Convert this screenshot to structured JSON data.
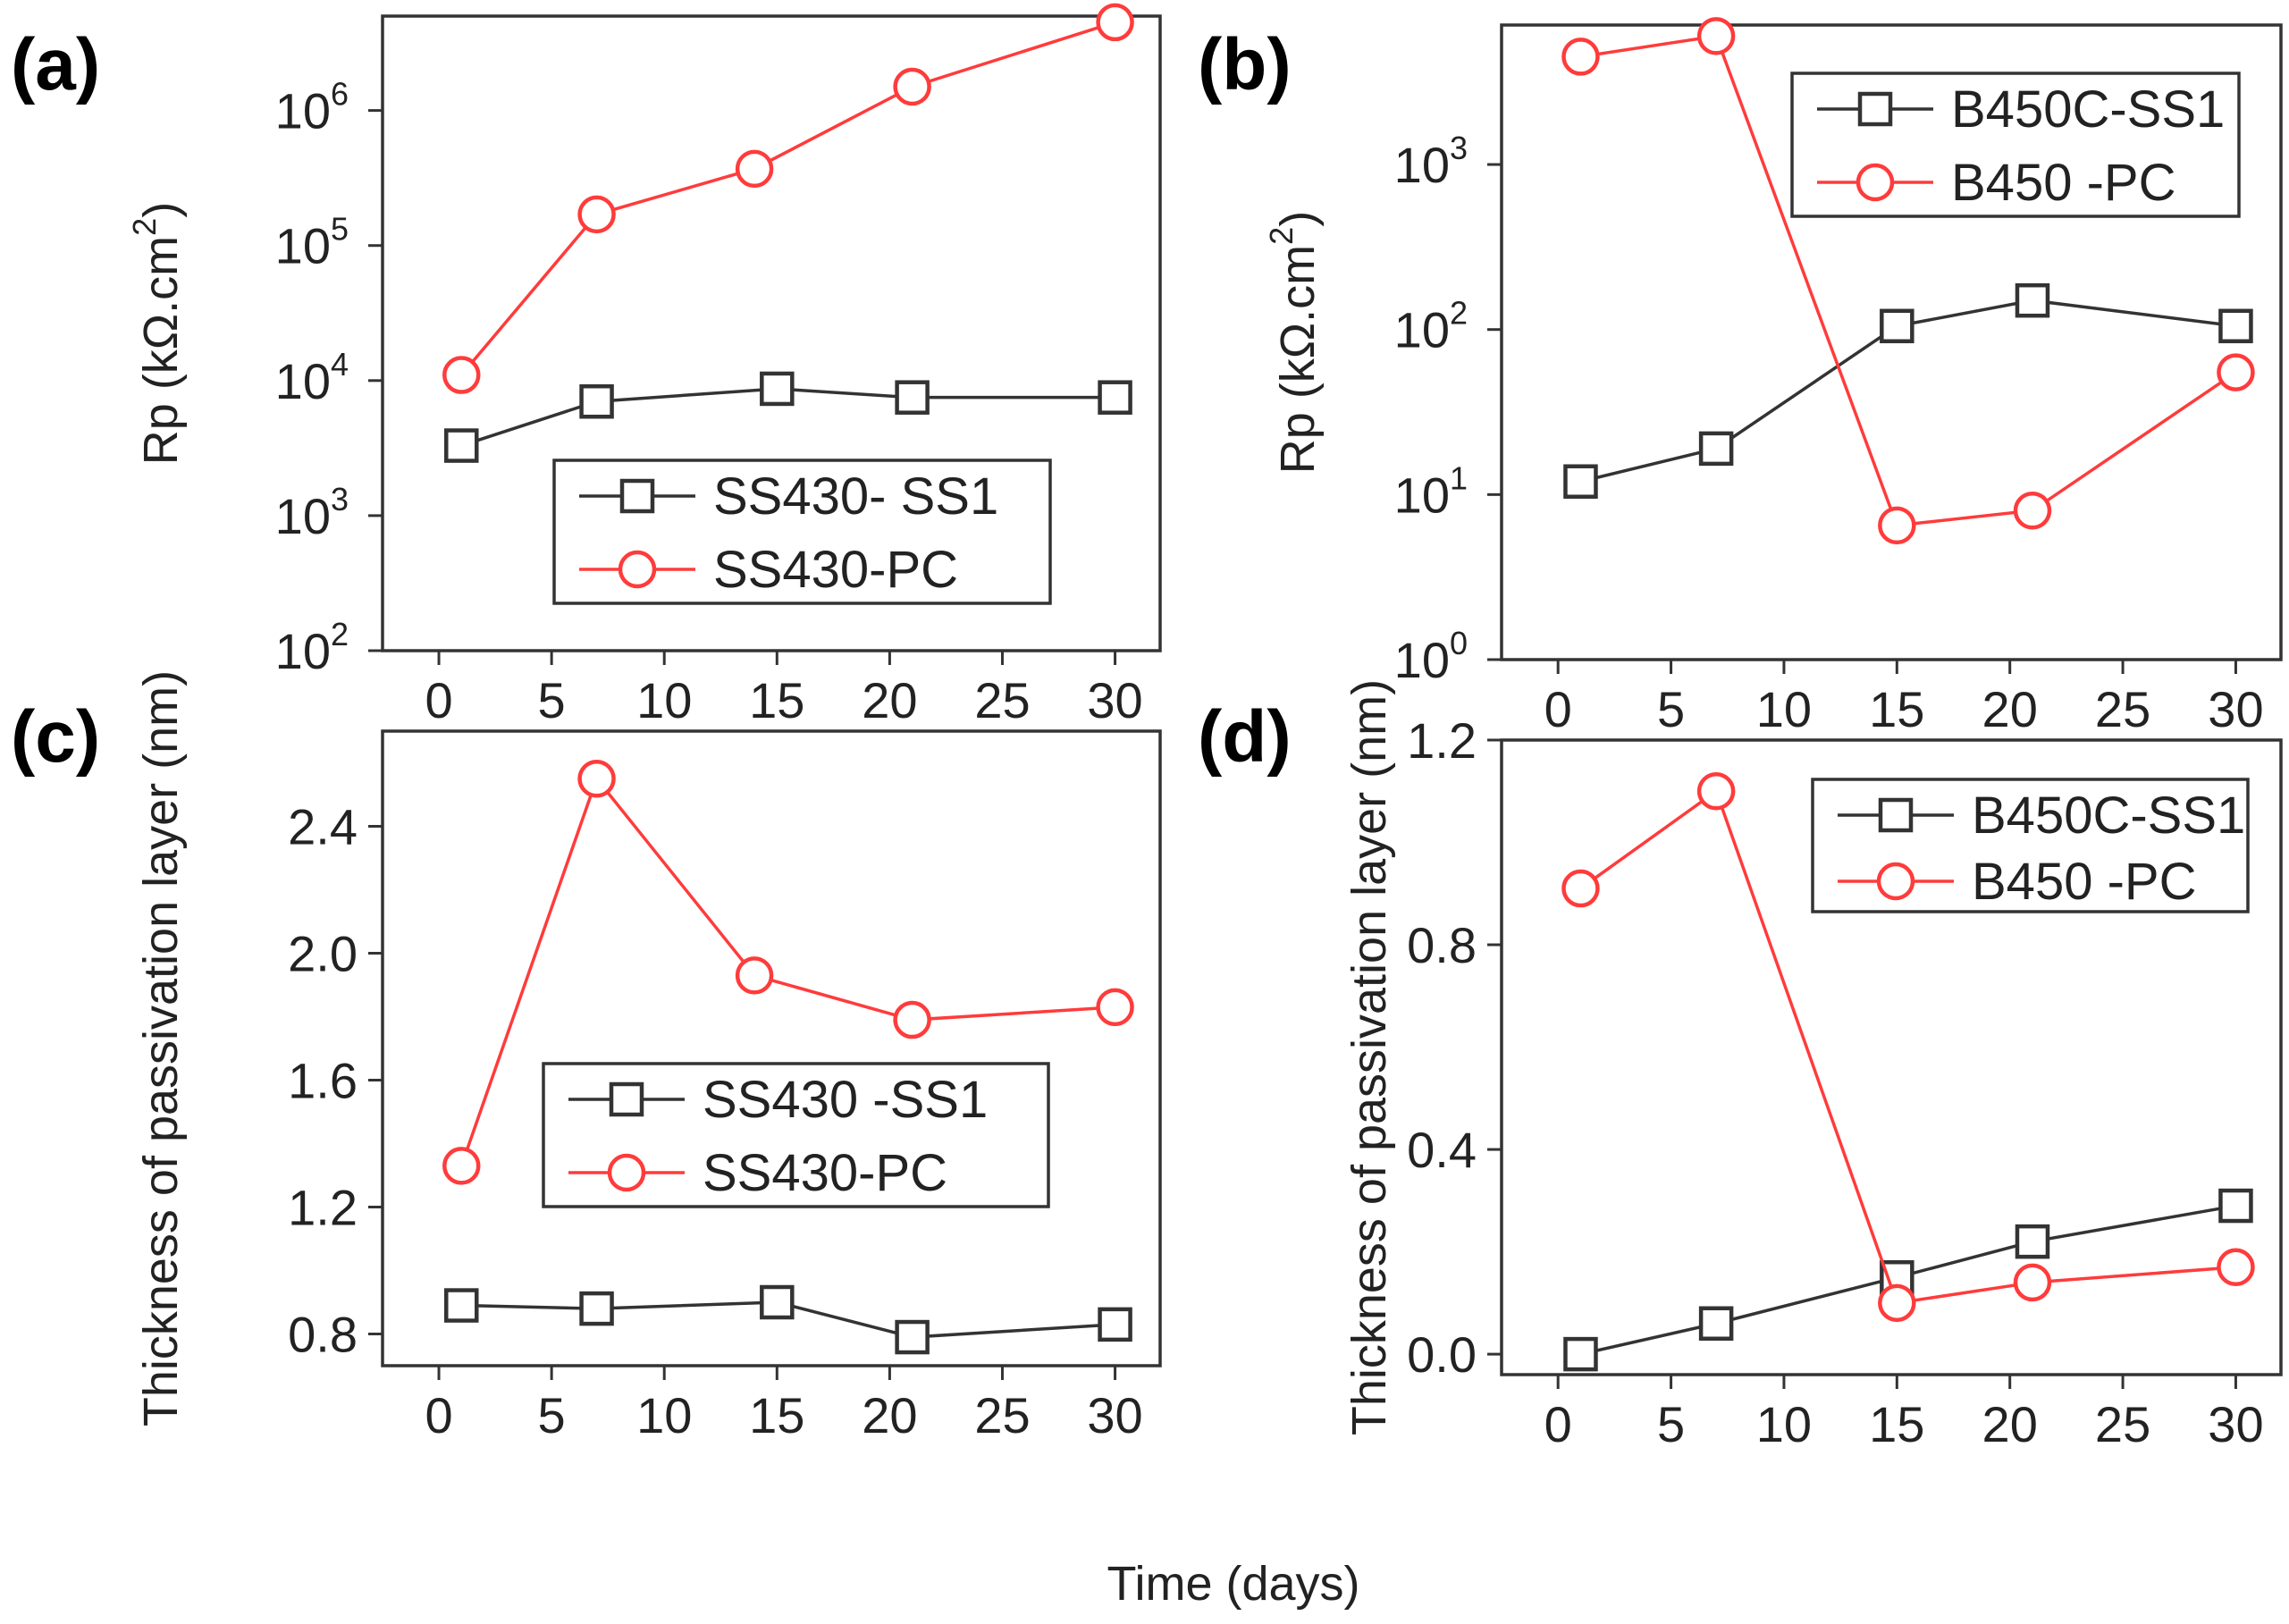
{
  "chart_data": [
    {
      "panel_label": "(a)",
      "type": "line",
      "yscale": "log",
      "ylim": [
        100,
        5000000
      ],
      "xlim": [
        -2.5,
        32
      ],
      "xticks": [
        0,
        5,
        10,
        15,
        20,
        25,
        30
      ],
      "yticks": [
        {
          "base": "10",
          "exp": "2"
        },
        {
          "base": "10",
          "exp": "3"
        },
        {
          "base": "10",
          "exp": "4"
        },
        {
          "base": "10",
          "exp": "5"
        },
        {
          "base": "10",
          "exp": "6"
        }
      ],
      "ylabel": "Rp (kΩ.cm",
      "ylabel_sup": "2",
      "ylabel_end": ")",
      "legend_position": "lower-right",
      "series": [
        {
          "name": "SS430- SS1",
          "marker": "square",
          "color": "#333333",
          "x": [
            1,
            7,
            15,
            21,
            30
          ],
          "y": [
            3300,
            7000,
            8700,
            7500,
            7500
          ]
        },
        {
          "name": "SS430-PC",
          "marker": "circle",
          "color": "#ff3b3b",
          "x": [
            1,
            7,
            14,
            21,
            30
          ],
          "y": [
            11000,
            170000,
            370000,
            1500000,
            4500000
          ]
        }
      ]
    },
    {
      "panel_label": "(b)",
      "type": "line",
      "yscale": "log",
      "ylim": [
        1,
        7000
      ],
      "xlim": [
        -2.5,
        32
      ],
      "xticks": [
        0,
        5,
        10,
        15,
        20,
        25,
        30
      ],
      "yticks": [
        {
          "base": "10",
          "exp": "0"
        },
        {
          "base": "10",
          "exp": "1"
        },
        {
          "base": "10",
          "exp": "2"
        },
        {
          "base": "10",
          "exp": "3"
        }
      ],
      "ylabel": "Rp (kΩ.cm",
      "ylabel_sup": "2",
      "ylabel_end": ")",
      "legend_position": "top-right",
      "series": [
        {
          "name": "B450C-SS1",
          "marker": "square",
          "color": "#333333",
          "x": [
            1,
            7,
            15,
            21,
            30
          ],
          "y": [
            12,
            19,
            105,
            150,
            105
          ]
        },
        {
          "name": "B450 -PC",
          "marker": "circle",
          "color": "#ff3b3b",
          "x": [
            1,
            7,
            15,
            21,
            30
          ],
          "y": [
            4500,
            6000,
            6.5,
            8,
            55
          ]
        }
      ]
    },
    {
      "panel_label": "(c)",
      "type": "line",
      "yscale": "linear",
      "ylim": [
        0.7,
        2.7
      ],
      "xlim": [
        -2.5,
        32
      ],
      "xticks": [
        0,
        5,
        10,
        15,
        20,
        25,
        30
      ],
      "yticks": [
        "0.8",
        "1.2",
        "1.6",
        "2.0",
        "2.4"
      ],
      "ylabel": "Thickness of passivation layer (nm)",
      "legend_position": "center-right",
      "series": [
        {
          "name": "SS430 -SS1",
          "marker": "square",
          "color": "#333333",
          "x": [
            1,
            7,
            15,
            21,
            30
          ],
          "y": [
            0.89,
            0.88,
            0.9,
            0.79,
            0.83
          ]
        },
        {
          "name": "SS430-PC",
          "marker": "circle",
          "color": "#ff3b3b",
          "x": [
            1,
            7,
            14,
            21,
            30
          ],
          "y": [
            1.33,
            2.55,
            1.93,
            1.79,
            1.83
          ]
        }
      ]
    },
    {
      "panel_label": "(d)",
      "type": "line",
      "yscale": "linear",
      "ylim": [
        -0.04,
        1.2
      ],
      "xlim": [
        -2.5,
        32
      ],
      "xticks": [
        0,
        5,
        10,
        15,
        20,
        25,
        30
      ],
      "yticks": [
        "0.0",
        "0.4",
        "0.8",
        "1.2"
      ],
      "ylabel": "Thickness of passivation layer (nm)",
      "legend_position": "top-right",
      "series": [
        {
          "name": "B450C-SS1",
          "marker": "square",
          "color": "#333333",
          "x": [
            1,
            7,
            15,
            21,
            30
          ],
          "y": [
            0.0,
            0.06,
            0.15,
            0.22,
            0.29
          ]
        },
        {
          "name": "B450 -PC",
          "marker": "circle",
          "color": "#ff3b3b",
          "x": [
            1,
            7,
            15,
            21,
            30
          ],
          "y": [
            0.91,
            1.1,
            0.1,
            0.14,
            0.17
          ]
        }
      ]
    }
  ],
  "shared_xlabel": "Time (days)"
}
